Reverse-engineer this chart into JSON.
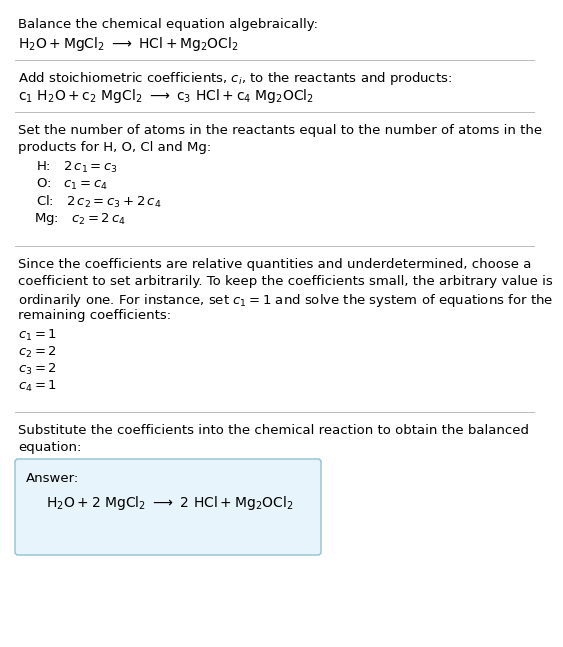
{
  "bg_color": "#ffffff",
  "text_color": "#000000",
  "font_size": 9.5,
  "answer_box_color": "#e8f4fb",
  "answer_box_border": "#90bfd4",
  "divider_color": "#bbbbbb",
  "section1_line1": "Balance the chemical equation algebraically:",
  "section1_line2": "$\\mathrm{H_2O + MgCl_2 \\ \\longrightarrow \\ HCl + Mg_2OCl_2}$",
  "section2_line1": "Add stoichiometric coefficients, $c_i$, to the reactants and products:",
  "section2_line2": "$\\mathrm{c_1\\ H_2O + c_2\\ MgCl_2 \\ \\longrightarrow \\ c_3\\ HCl + c_4\\ Mg_2OCl_2}$",
  "section3_line1": "Set the number of atoms in the reactants equal to the number of atoms in the",
  "section3_line2": "products for H, O, Cl and Mg:",
  "atom_H": "H: $\\ \\ 2\\,c_1 = c_3$",
  "atom_O": "O: $\\ \\ c_1 = c_4$",
  "atom_Cl": "Cl: $\\ \\ 2\\,c_2 = c_3 + 2\\,c_4$",
  "atom_Mg": "Mg: $\\ \\ c_2 = 2\\,c_4$",
  "section4_line1": "Since the coefficients are relative quantities and underdetermined, choose a",
  "section4_line2": "coefficient to set arbitrarily. To keep the coefficients small, the arbitrary value is",
  "section4_line3": "ordinarily one. For instance, set $c_1 = 1$ and solve the system of equations for the",
  "section4_line4": "remaining coefficients:",
  "coeff1": "$c_1 = 1$",
  "coeff2": "$c_2 = 2$",
  "coeff3": "$c_3 = 2$",
  "coeff4": "$c_4 = 1$",
  "section5_line1": "Substitute the coefficients into the chemical reaction to obtain the balanced",
  "section5_line2": "equation:",
  "answer_label": "Answer:",
  "answer_eq": "$\\mathrm{H_2O + 2\\ MgCl_2 \\ \\longrightarrow \\ 2\\ HCl + Mg_2OCl_2}$"
}
